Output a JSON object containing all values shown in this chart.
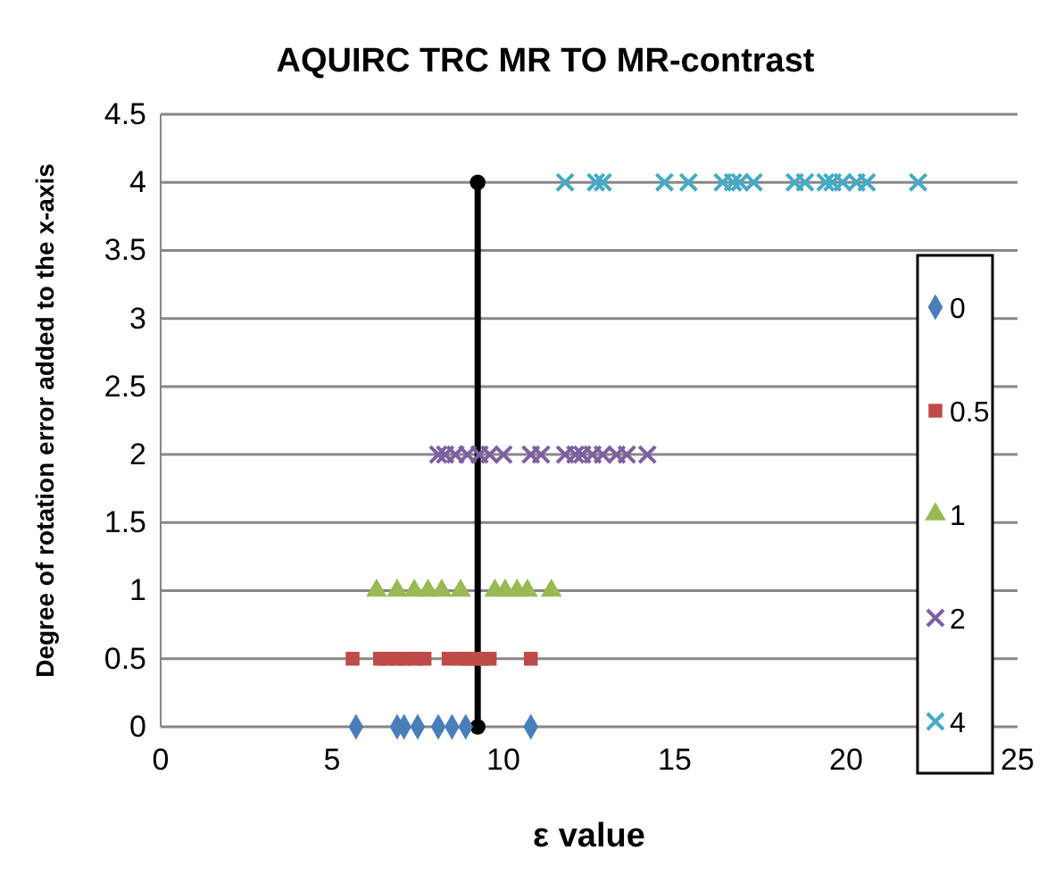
{
  "chart_data": {
    "type": "scatter",
    "title": "AQUIRC TRC MR TO MR-contrast",
    "xlabel": "ε value",
    "ylabel": "Degree of rotation error added to the x-axis",
    "xlim": [
      0,
      25
    ],
    "xticks": [
      0,
      5,
      10,
      15,
      20,
      25
    ],
    "ylim": [
      0,
      4.5
    ],
    "yticks": [
      0,
      0.5,
      1,
      1.5,
      2,
      2.5,
      3,
      3.5,
      4,
      4.5
    ],
    "grid": "y",
    "legend": "right",
    "series": [
      {
        "name": "0",
        "color": "#4a7ebb",
        "marker": "diamond",
        "x": [
          5.7,
          6.9,
          7.1,
          7.5,
          8.1,
          8.5,
          8.9,
          10.8
        ],
        "values": [
          0,
          0,
          0,
          0,
          0,
          0,
          0,
          0
        ]
      },
      {
        "name": "0.5",
        "color": "#be4b48",
        "marker": "square",
        "x": [
          5.6,
          6.4,
          6.6,
          6.9,
          7.1,
          7.4,
          7.7,
          8.4,
          8.75,
          8.95,
          9.2,
          9.4,
          9.6,
          10.8
        ],
        "values": [
          0.5,
          0.5,
          0.5,
          0.5,
          0.5,
          0.5,
          0.5,
          0.5,
          0.5,
          0.5,
          0.5,
          0.5,
          0.5,
          0.5
        ]
      },
      {
        "name": "1",
        "color": "#98b954",
        "marker": "triangle",
        "x": [
          6.3,
          6.9,
          7.4,
          7.8,
          8.2,
          8.75,
          9.75,
          10.05,
          10.4,
          10.7,
          11.4
        ],
        "values": [
          1,
          1,
          1,
          1,
          1,
          1,
          1,
          1,
          1,
          1,
          1
        ]
      },
      {
        "name": "2",
        "color": "#7d60a0",
        "marker": "cross",
        "x": [
          8.1,
          8.3,
          8.6,
          8.95,
          9.3,
          9.6,
          10.0,
          10.8,
          11.1,
          11.8,
          12.1,
          12.3,
          12.6,
          12.9,
          13.3,
          13.6,
          14.2
        ],
        "values": [
          2,
          2,
          2,
          2,
          2,
          2,
          2,
          2,
          2,
          2,
          2,
          2,
          2,
          2,
          2,
          2,
          2
        ]
      },
      {
        "name": "4",
        "color": "#46aac5",
        "marker": "cross",
        "x": [
          11.8,
          12.7,
          12.9,
          14.7,
          15.4,
          16.4,
          16.7,
          16.9,
          17.3,
          18.5,
          18.8,
          19.4,
          19.6,
          19.9,
          20.3,
          20.6,
          22.1
        ],
        "values": [
          4,
          4,
          4,
          4,
          4,
          4,
          4,
          4,
          4,
          4,
          4,
          4,
          4,
          4,
          4,
          4,
          4
        ]
      },
      {
        "type": "line",
        "color": "#000000",
        "marker": "circle",
        "x": [
          9.25,
          9.25
        ],
        "values": [
          0,
          4
        ]
      }
    ]
  }
}
